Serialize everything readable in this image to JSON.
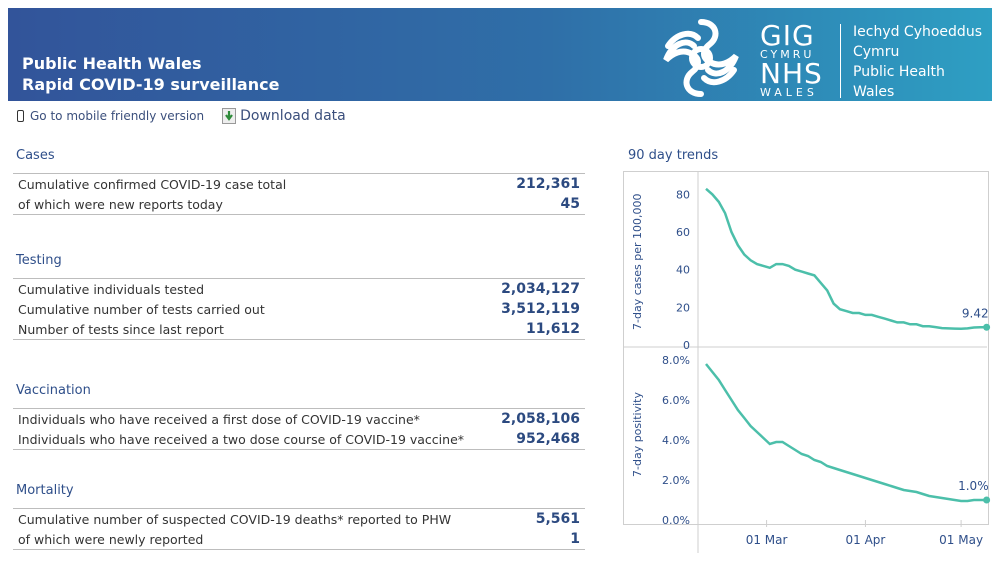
{
  "header": {
    "title_line1": "Public Health Wales",
    "title_line2": "Rapid COVID-19 surveillance",
    "logo_gig": "GIG",
    "logo_cymru": "CYMRU",
    "logo_nhs": "NHS",
    "logo_wales": "WALES",
    "org_line1": "Iechyd Cyhoeddus",
    "org_line2": "Cymru",
    "org_line3": "Public Health",
    "org_line4": "Wales",
    "colors": {
      "gradient_start": "#32549a",
      "gradient_end": "#2e9fc3"
    }
  },
  "links": {
    "mobile": "Go to mobile friendly version",
    "mobile_icon": "phone-icon",
    "download": "Download data",
    "download_icon": "download-icon"
  },
  "sections": {
    "cases": {
      "title": "Cases",
      "rows": [
        {
          "label": "Cumulative confirmed COVID-19 case total",
          "value": "212,361"
        },
        {
          "label": "of which were new reports today",
          "value": "45"
        }
      ]
    },
    "testing": {
      "title": "Testing",
      "rows": [
        {
          "label": "Cumulative individuals tested",
          "value": "2,034,127"
        },
        {
          "label": "Cumulative number of tests carried out",
          "value": "3,512,119"
        },
        {
          "label": "Number of tests since last report",
          "value": "11,612"
        }
      ]
    },
    "vaccination": {
      "title": "Vaccination",
      "rows": [
        {
          "label": "Individuals who have received a first dose of COVID-19 vaccine*",
          "value": "2,058,106"
        },
        {
          "label": "Individuals who have received a two dose course of COVID-19 vaccine*",
          "value": "952,468"
        }
      ]
    },
    "mortality": {
      "title": "Mortality",
      "rows": [
        {
          "label": "Cumulative number of suspected COVID-19 deaths* reported to PHW",
          "value": "5,561"
        },
        {
          "label": "of which were newly reported",
          "value": "1"
        }
      ]
    }
  },
  "trends": {
    "title": "90 day trends"
  },
  "chart_data": [
    {
      "type": "line",
      "ylabel": "7-day cases per 100,000",
      "ylim": [
        0,
        85
      ],
      "yticks": [
        "0",
        "20",
        "40",
        "60",
        "80"
      ],
      "ytick_values": [
        0,
        20,
        40,
        60,
        80
      ],
      "end_label": "9.42",
      "color": "#4cbfaa",
      "x": [
        0,
        2,
        4,
        6,
        8,
        10,
        12,
        14,
        16,
        18,
        20,
        22,
        24,
        26,
        28,
        30,
        32,
        34,
        36,
        38,
        40,
        42,
        44,
        46,
        48,
        50,
        52,
        54,
        56,
        58,
        60,
        62,
        64,
        66,
        68,
        70,
        72,
        74,
        76,
        78,
        80,
        82,
        84,
        86,
        88
      ],
      "values": [
        83,
        80,
        76,
        70,
        60,
        53,
        48,
        45,
        43,
        42,
        41,
        43,
        43,
        42,
        40,
        39,
        38,
        37,
        33,
        29,
        22,
        19,
        18,
        17,
        17,
        16,
        16,
        15,
        14,
        13,
        12,
        12,
        11,
        11,
        10,
        10,
        9.5,
        9,
        8.8,
        8.7,
        8.6,
        8.8,
        9.3,
        9.4,
        9.42
      ]
    },
    {
      "type": "line",
      "ylabel": "7-day positivity",
      "ylim": [
        0,
        8
      ],
      "yticks": [
        "0.0%",
        "2.0%",
        "4.0%",
        "6.0%",
        "8.0%"
      ],
      "ytick_values": [
        0,
        2,
        4,
        6,
        8
      ],
      "x_ticks": [
        "01 Mar",
        "01 Apr",
        "01 May"
      ],
      "x_tick_values": [
        19,
        50,
        80
      ],
      "end_label": "1.0%",
      "color": "#4cbfaa",
      "x": [
        0,
        2,
        4,
        6,
        8,
        10,
        12,
        14,
        16,
        18,
        20,
        22,
        24,
        26,
        28,
        30,
        32,
        34,
        36,
        38,
        40,
        42,
        44,
        46,
        48,
        50,
        52,
        54,
        56,
        58,
        60,
        62,
        64,
        66,
        68,
        70,
        72,
        74,
        76,
        78,
        80,
        82,
        84,
        86,
        88
      ],
      "values": [
        7.8,
        7.4,
        7.0,
        6.5,
        6.0,
        5.5,
        5.1,
        4.7,
        4.4,
        4.1,
        3.8,
        3.9,
        3.9,
        3.7,
        3.5,
        3.3,
        3.2,
        3.0,
        2.9,
        2.7,
        2.6,
        2.5,
        2.4,
        2.3,
        2.2,
        2.1,
        2.0,
        1.9,
        1.8,
        1.7,
        1.6,
        1.5,
        1.45,
        1.4,
        1.3,
        1.2,
        1.15,
        1.1,
        1.05,
        1.0,
        0.95,
        0.95,
        1.0,
        1.0,
        1.0
      ]
    }
  ]
}
